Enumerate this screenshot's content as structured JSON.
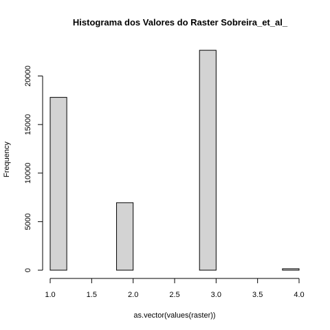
{
  "chart_data": {
    "type": "bar",
    "title": "Histograma dos Valores do Raster Sobreira_et_al_",
    "xlabel": "as.vector(values(raster))",
    "ylabel": "Frequency",
    "xlim": [
      1.0,
      4.0
    ],
    "ylim": [
      0,
      22800
    ],
    "x_ticks": [
      "1.0",
      "1.5",
      "2.0",
      "2.5",
      "3.0",
      "3.5",
      "4.0"
    ],
    "y_ticks": [
      "0",
      "5000",
      "10000",
      "15000",
      "20000"
    ],
    "bins": [
      {
        "start": 1.0,
        "end": 1.2,
        "value": 17800
      },
      {
        "start": 1.2,
        "end": 1.4,
        "value": 0
      },
      {
        "start": 1.4,
        "end": 1.6,
        "value": 0
      },
      {
        "start": 1.6,
        "end": 1.8,
        "value": 0
      },
      {
        "start": 1.8,
        "end": 2.0,
        "value": 6950
      },
      {
        "start": 2.0,
        "end": 2.2,
        "value": 0
      },
      {
        "start": 2.2,
        "end": 2.4,
        "value": 0
      },
      {
        "start": 2.4,
        "end": 2.6,
        "value": 0
      },
      {
        "start": 2.6,
        "end": 2.8,
        "value": 0
      },
      {
        "start": 2.8,
        "end": 3.0,
        "value": 22650
      },
      {
        "start": 3.0,
        "end": 3.2,
        "value": 0
      },
      {
        "start": 3.2,
        "end": 3.4,
        "value": 0
      },
      {
        "start": 3.4,
        "end": 3.6,
        "value": 0
      },
      {
        "start": 3.6,
        "end": 3.8,
        "value": 0
      },
      {
        "start": 3.8,
        "end": 4.0,
        "value": 150
      }
    ],
    "bar_fill": "#d3d3d3",
    "bar_stroke": "#000000",
    "grid": false,
    "legend": "none"
  }
}
